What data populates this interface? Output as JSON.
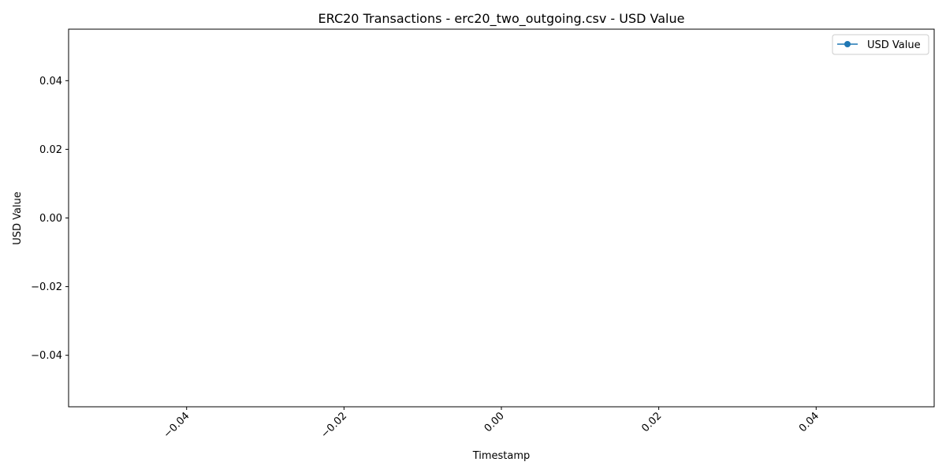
{
  "chart_data": {
    "type": "line",
    "title": "ERC20 Transactions - erc20_two_outgoing.csv - USD Value",
    "xlabel": "Timestamp",
    "ylabel": "USD Value",
    "xlim": [
      -0.055,
      0.055
    ],
    "ylim": [
      -0.055,
      0.055
    ],
    "x_ticks": [
      -0.04,
      -0.02,
      0.0,
      0.02,
      0.04
    ],
    "x_tick_labels": [
      "−0.04",
      "−0.02",
      "0.00",
      "0.02",
      "0.04"
    ],
    "x_tick_rotation": 45,
    "y_ticks": [
      -0.04,
      -0.02,
      0.0,
      0.02,
      0.04
    ],
    "y_tick_labels": [
      "−0.04",
      "−0.02",
      "0.00",
      "0.02",
      "0.04"
    ],
    "grid": false,
    "legend_position": "top-right",
    "series": [
      {
        "name": "USD Value",
        "color": "#1f77b4",
        "marker": "circle",
        "x": [],
        "y": []
      }
    ]
  }
}
